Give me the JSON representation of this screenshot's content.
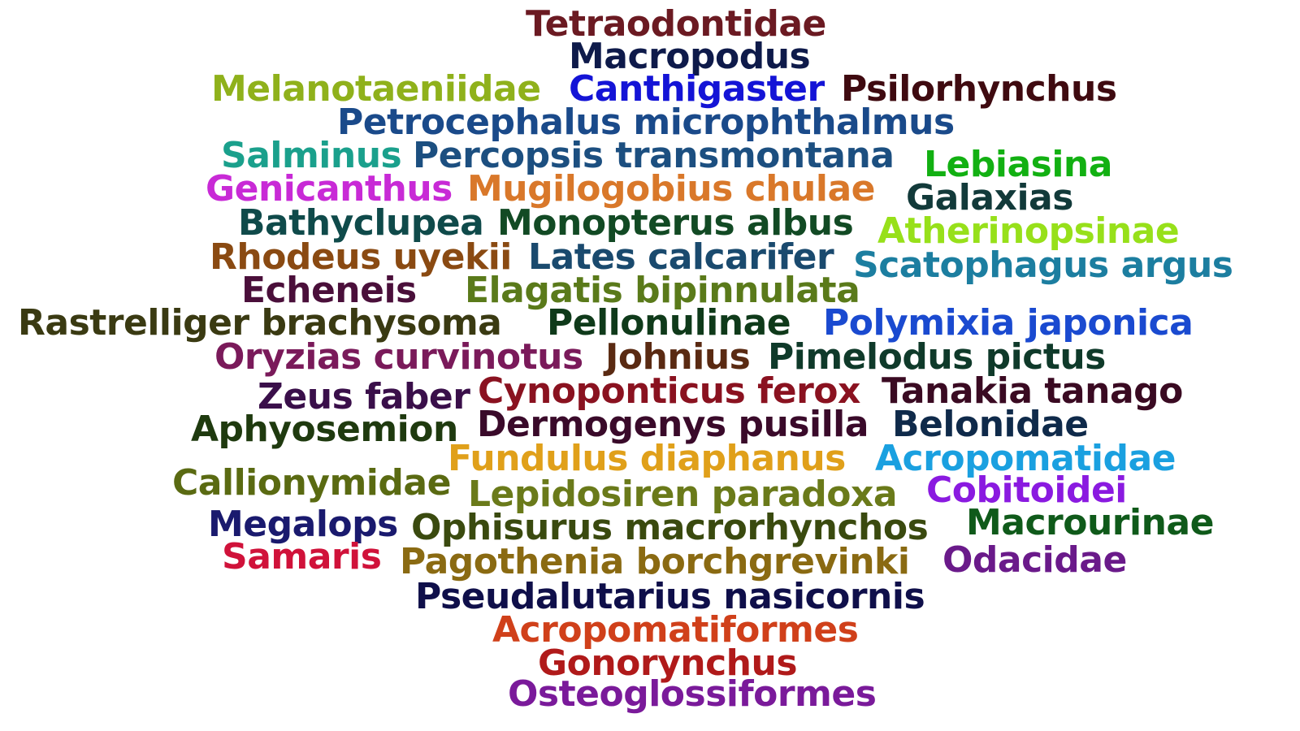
{
  "words": [
    {
      "text": "Tetraodontidae",
      "color": "#6b1a22"
    },
    {
      "text": "Macropodus",
      "color": "#0e1a4a"
    },
    {
      "text": "Melanotaeniidae",
      "color": "#8fb11b"
    },
    {
      "text": "Canthigaster",
      "color": "#1414d6"
    },
    {
      "text": "Psilorhynchus",
      "color": "#3f0a10"
    },
    {
      "text": "Petrocephalus microphthalmus",
      "color": "#1a4a8a"
    },
    {
      "text": "Salminus",
      "color": "#1aa08c"
    },
    {
      "text": "Percopsis transmontana",
      "color": "#1c4f80"
    },
    {
      "text": "Lebiasina",
      "color": "#12b012"
    },
    {
      "text": "Genicanthus",
      "color": "#c82ad6"
    },
    {
      "text": "Mugilogobius chulae",
      "color": "#d9782a"
    },
    {
      "text": "Galaxias",
      "color": "#123a3a"
    },
    {
      "text": "Bathyclupea",
      "color": "#0f4a4a"
    },
    {
      "text": "Monopterus albus",
      "color": "#124a24"
    },
    {
      "text": "Atherinopsinae",
      "color": "#97e01a"
    },
    {
      "text": "Rhodeus uyekii",
      "color": "#8a4a12"
    },
    {
      "text": "Lates calcarifer",
      "color": "#1a4a6e"
    },
    {
      "text": "Scatophagus argus",
      "color": "#1c7ea0"
    },
    {
      "text": "Echeneis",
      "color": "#4a0f3a"
    },
    {
      "text": "Elagatis bipinnulata",
      "color": "#5a7a1a"
    },
    {
      "text": "Rastrelliger brachysoma",
      "color": "#3a3a12"
    },
    {
      "text": "Pellonulinae",
      "color": "#0f3a1a"
    },
    {
      "text": "Polymixia japonica",
      "color": "#1a4ad0"
    },
    {
      "text": "Oryzias curvinotus",
      "color": "#7a1a5a"
    },
    {
      "text": "Johnius",
      "color": "#5a2a12"
    },
    {
      "text": "Pimelodus pictus",
      "color": "#0f3a2a"
    },
    {
      "text": "Zeus faber",
      "color": "#3a0f4a"
    },
    {
      "text": "Cynoponticus ferox",
      "color": "#8a1220"
    },
    {
      "text": "Tanakia tanago",
      "color": "#3a0a22"
    },
    {
      "text": "Aphyosemion",
      "color": "#1f3a0f"
    },
    {
      "text": "Dermogenys pusilla",
      "color": "#3a0a2a"
    },
    {
      "text": "Belonidae",
      "color": "#0f2a4a"
    },
    {
      "text": "Fundulus diaphanus",
      "color": "#e0a01a"
    },
    {
      "text": "Acropomatidae",
      "color": "#1aa0e0"
    },
    {
      "text": "Callionymidae",
      "color": "#5a6a12"
    },
    {
      "text": "Lepidosiren paradoxa",
      "color": "#6a7a1a"
    },
    {
      "text": "Cobitoidei",
      "color": "#8a1ae0"
    },
    {
      "text": "Megalops",
      "color": "#1a1a6e"
    },
    {
      "text": "Ophisurus macrorhynchos",
      "color": "#3a4a0f"
    },
    {
      "text": "Macrourinae",
      "color": "#0f5a1a"
    },
    {
      "text": "Samaris",
      "color": "#d0123a"
    },
    {
      "text": "Pagothenia borchgrevinki",
      "color": "#8a6a12"
    },
    {
      "text": "Odacidae",
      "color": "#6a1a8a"
    },
    {
      "text": "Pseudalutarius nasicornis",
      "color": "#0f0f4a"
    },
    {
      "text": "Acropomatiformes",
      "color": "#d0401a"
    },
    {
      "text": "Gonorynchus",
      "color": "#b01a1a"
    },
    {
      "text": "Osteoglossiformes",
      "color": "#7a1a9a"
    }
  ]
}
